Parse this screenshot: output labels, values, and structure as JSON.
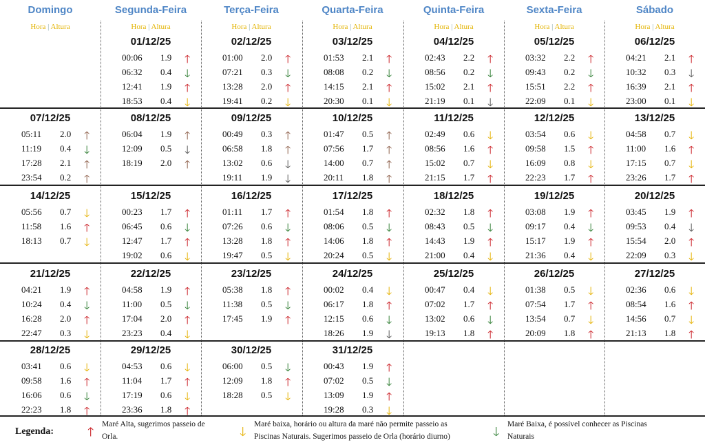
{
  "days": [
    "Domingo",
    "Segunda-Feira",
    "Terça-Feira",
    "Quarta-Feira",
    "Quinta-Feira",
    "Sexta-Feira",
    "Sábado"
  ],
  "subheader": {
    "hora": "Hora",
    "sep": "|",
    "altura": "Altura"
  },
  "colors": {
    "accent": "#4f86c6",
    "sub": "#e3b300",
    "high": "#c8181e",
    "low_warn": "#e5b000",
    "low_ok": "#2e7d32"
  },
  "weeks": [
    [
      null,
      {
        "date": "01/12/25",
        "tides": [
          [
            "00:06",
            "1.9",
            "up"
          ],
          [
            "06:32",
            "0.4",
            "green"
          ],
          [
            "12:41",
            "1.9",
            "up"
          ],
          [
            "18:53",
            "0.4",
            "down"
          ]
        ]
      },
      {
        "date": "02/12/25",
        "tides": [
          [
            "01:00",
            "2.0",
            "up"
          ],
          [
            "07:21",
            "0.3",
            "green"
          ],
          [
            "13:28",
            "2.0",
            "up"
          ],
          [
            "19:41",
            "0.2",
            "down"
          ]
        ]
      },
      {
        "date": "03/12/25",
        "tides": [
          [
            "01:53",
            "2.1",
            "up"
          ],
          [
            "08:08",
            "0.2",
            "green"
          ],
          [
            "14:15",
            "2.1",
            "up"
          ],
          [
            "20:30",
            "0.1",
            "down"
          ]
        ]
      },
      {
        "date": "04/12/25",
        "tides": [
          [
            "02:43",
            "2.2",
            "up"
          ],
          [
            "08:56",
            "0.2",
            "green"
          ],
          [
            "15:02",
            "2.1",
            "up"
          ],
          [
            "21:19",
            "0.1",
            "gray"
          ]
        ]
      },
      {
        "date": "05/12/25",
        "tides": [
          [
            "03:32",
            "2.2",
            "up"
          ],
          [
            "09:43",
            "0.2",
            "green"
          ],
          [
            "15:51",
            "2.2",
            "up"
          ],
          [
            "22:09",
            "0.1",
            "down"
          ]
        ]
      },
      {
        "date": "06/12/25",
        "tides": [
          [
            "04:21",
            "2.1",
            "up"
          ],
          [
            "10:32",
            "0.3",
            "gray"
          ],
          [
            "16:39",
            "2.1",
            "up"
          ],
          [
            "23:00",
            "0.1",
            "down"
          ]
        ]
      }
    ],
    [
      {
        "date": "07/12/25",
        "tides": [
          [
            "05:11",
            "2.0",
            "brown"
          ],
          [
            "11:19",
            "0.4",
            "green"
          ],
          [
            "17:28",
            "2.1",
            "brown"
          ],
          [
            "23:54",
            "0.2",
            "brown"
          ]
        ]
      },
      {
        "date": "08/12/25",
        "tides": [
          [
            "06:04",
            "1.9",
            "brown"
          ],
          [
            "12:09",
            "0.5",
            "gray"
          ],
          [
            "18:19",
            "2.0",
            "brown"
          ]
        ]
      },
      {
        "date": "09/12/25",
        "tides": [
          [
            "00:49",
            "0.3",
            "brown"
          ],
          [
            "06:58",
            "1.8",
            "brown"
          ],
          [
            "13:02",
            "0.6",
            "gray"
          ],
          [
            "19:11",
            "1.9",
            "gray"
          ]
        ]
      },
      {
        "date": "10/12/25",
        "tides": [
          [
            "01:47",
            "0.5",
            "brown"
          ],
          [
            "07:56",
            "1.7",
            "brown"
          ],
          [
            "14:00",
            "0.7",
            "brown"
          ],
          [
            "20:11",
            "1.8",
            "brown"
          ]
        ]
      },
      {
        "date": "11/12/25",
        "tides": [
          [
            "02:49",
            "0.6",
            "down"
          ],
          [
            "08:56",
            "1.6",
            "up"
          ],
          [
            "15:02",
            "0.7",
            "down"
          ],
          [
            "21:15",
            "1.7",
            "up"
          ]
        ]
      },
      {
        "date": "12/12/25",
        "tides": [
          [
            "03:54",
            "0.6",
            "down"
          ],
          [
            "09:58",
            "1.5",
            "up"
          ],
          [
            "16:09",
            "0.8",
            "down"
          ],
          [
            "22:23",
            "1.7",
            "up"
          ]
        ]
      },
      {
        "date": "13/12/25",
        "tides": [
          [
            "04:58",
            "0.7",
            "down"
          ],
          [
            "11:00",
            "1.6",
            "up"
          ],
          [
            "17:15",
            "0.7",
            "down"
          ],
          [
            "23:26",
            "1.7",
            "up"
          ]
        ]
      }
    ],
    [
      {
        "date": "14/12/25",
        "tides": [
          [
            "05:56",
            "0.7",
            "down"
          ],
          [
            "11:58",
            "1.6",
            "up"
          ],
          [
            "18:13",
            "0.7",
            "down"
          ]
        ]
      },
      {
        "date": "15/12/25",
        "tides": [
          [
            "00:23",
            "1.7",
            "up"
          ],
          [
            "06:45",
            "0.6",
            "green"
          ],
          [
            "12:47",
            "1.7",
            "up"
          ],
          [
            "19:02",
            "0.6",
            "down"
          ]
        ]
      },
      {
        "date": "16/12/25",
        "tides": [
          [
            "01:11",
            "1.7",
            "up"
          ],
          [
            "07:26",
            "0.6",
            "green"
          ],
          [
            "13:28",
            "1.8",
            "up"
          ],
          [
            "19:47",
            "0.5",
            "down"
          ]
        ]
      },
      {
        "date": "17/12/25",
        "tides": [
          [
            "01:54",
            "1.8",
            "up"
          ],
          [
            "08:06",
            "0.5",
            "green"
          ],
          [
            "14:06",
            "1.8",
            "up"
          ],
          [
            "20:24",
            "0.5",
            "down"
          ]
        ]
      },
      {
        "date": "18/12/25",
        "tides": [
          [
            "02:32",
            "1.8",
            "up"
          ],
          [
            "08:43",
            "0.5",
            "green"
          ],
          [
            "14:43",
            "1.9",
            "up"
          ],
          [
            "21:00",
            "0.4",
            "down"
          ]
        ]
      },
      {
        "date": "19/12/25",
        "tides": [
          [
            "03:08",
            "1.9",
            "up"
          ],
          [
            "09:17",
            "0.4",
            "green"
          ],
          [
            "15:17",
            "1.9",
            "up"
          ],
          [
            "21:36",
            "0.4",
            "down"
          ]
        ]
      },
      {
        "date": "20/12/25",
        "tides": [
          [
            "03:45",
            "1.9",
            "up"
          ],
          [
            "09:53",
            "0.4",
            "gray"
          ],
          [
            "15:54",
            "2.0",
            "up"
          ],
          [
            "22:09",
            "0.3",
            "down"
          ]
        ]
      }
    ],
    [
      {
        "date": "21/12/25",
        "tides": [
          [
            "04:21",
            "1.9",
            "up"
          ],
          [
            "10:24",
            "0.4",
            "green"
          ],
          [
            "16:28",
            "2.0",
            "up"
          ],
          [
            "22:47",
            "0.3",
            "down"
          ]
        ]
      },
      {
        "date": "22/12/25",
        "tides": [
          [
            "04:58",
            "1.9",
            "up"
          ],
          [
            "11:00",
            "0.5",
            "green"
          ],
          [
            "17:04",
            "2.0",
            "up"
          ],
          [
            "23:23",
            "0.4",
            "down"
          ]
        ]
      },
      {
        "date": "23/12/25",
        "tides": [
          [
            "05:38",
            "1.8",
            "up"
          ],
          [
            "11:38",
            "0.5",
            "green"
          ],
          [
            "17:45",
            "1.9",
            "up"
          ]
        ]
      },
      {
        "date": "24/12/25",
        "tides": [
          [
            "00:02",
            "0.4",
            "down"
          ],
          [
            "06:17",
            "1.8",
            "up"
          ],
          [
            "12:15",
            "0.6",
            "green"
          ],
          [
            "18:26",
            "1.9",
            "gray"
          ]
        ]
      },
      {
        "date": "25/12/25",
        "tides": [
          [
            "00:47",
            "0.4",
            "down"
          ],
          [
            "07:02",
            "1.7",
            "up"
          ],
          [
            "13:02",
            "0.6",
            "green"
          ],
          [
            "19:13",
            "1.8",
            "up"
          ]
        ]
      },
      {
        "date": "26/12/25",
        "tides": [
          [
            "01:38",
            "0.5",
            "down"
          ],
          [
            "07:54",
            "1.7",
            "up"
          ],
          [
            "13:54",
            "0.7",
            "down"
          ],
          [
            "20:09",
            "1.8",
            "up"
          ]
        ]
      },
      {
        "date": "27/12/25",
        "tides": [
          [
            "02:36",
            "0.6",
            "down"
          ],
          [
            "08:54",
            "1.6",
            "up"
          ],
          [
            "14:56",
            "0.7",
            "down"
          ],
          [
            "21:13",
            "1.8",
            "up"
          ]
        ]
      }
    ],
    [
      {
        "date": "28/12/25",
        "tides": [
          [
            "03:41",
            "0.6",
            "down"
          ],
          [
            "09:58",
            "1.6",
            "up"
          ],
          [
            "16:06",
            "0.6",
            "green"
          ],
          [
            "22:23",
            "1.8",
            "up"
          ]
        ]
      },
      {
        "date": "29/12/25",
        "tides": [
          [
            "04:53",
            "0.6",
            "down"
          ],
          [
            "11:04",
            "1.7",
            "up"
          ],
          [
            "17:19",
            "0.6",
            "down"
          ],
          [
            "23:36",
            "1.8",
            "up"
          ]
        ]
      },
      {
        "date": "30/12/25",
        "tides": [
          [
            "06:00",
            "0.5",
            "green"
          ],
          [
            "12:09",
            "1.8",
            "up"
          ],
          [
            "18:28",
            "0.5",
            "down"
          ]
        ]
      },
      {
        "date": "31/12/25",
        "tides": [
          [
            "00:43",
            "1.9",
            "up"
          ],
          [
            "07:02",
            "0.5",
            "green"
          ],
          [
            "13:09",
            "1.9",
            "up"
          ],
          [
            "19:28",
            "0.3",
            "down"
          ]
        ]
      },
      null,
      null,
      null
    ]
  ],
  "legend": {
    "title": "Legenda:",
    "items": [
      {
        "arrow": "up",
        "text1": "Maré Alta, sugerimos passeio de",
        "text2": "Orla."
      },
      {
        "arrow": "down",
        "text1": "Maré baixa, horário ou altura da maré não permite passeio as",
        "text2": "Piscinas Naturais. Sugerimos passeio de Orla (horário diurno)"
      },
      {
        "arrow": "green",
        "text1": "Maré Baixa, é possível conhecer as Piscinas",
        "text2": "Naturais"
      }
    ]
  }
}
